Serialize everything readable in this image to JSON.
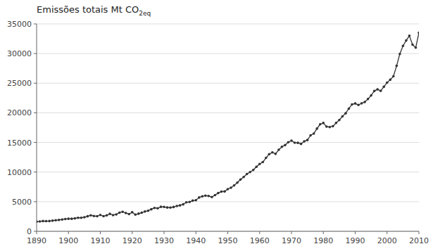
{
  "chart_data": {
    "type": "line",
    "title": "Emissões totais Mt CO",
    "subtitle": "2eq",
    "x": [
      1890,
      1891,
      1892,
      1893,
      1894,
      1895,
      1896,
      1897,
      1898,
      1899,
      1900,
      1901,
      1902,
      1903,
      1904,
      1905,
      1906,
      1907,
      1908,
      1909,
      1910,
      1911,
      1912,
      1913,
      1914,
      1915,
      1916,
      1917,
      1918,
      1919,
      1920,
      1921,
      1922,
      1923,
      1924,
      1925,
      1926,
      1927,
      1928,
      1929,
      1930,
      1931,
      1932,
      1933,
      1934,
      1935,
      1936,
      1937,
      1938,
      1939,
      1940,
      1941,
      1942,
      1943,
      1944,
      1945,
      1946,
      1947,
      1948,
      1949,
      1950,
      1951,
      1952,
      1953,
      1954,
      1955,
      1956,
      1957,
      1958,
      1959,
      1960,
      1961,
      1962,
      1963,
      1964,
      1965,
      1966,
      1967,
      1968,
      1969,
      1970,
      1971,
      1972,
      1973,
      1974,
      1975,
      1976,
      1977,
      1978,
      1979,
      1980,
      1981,
      1982,
      1983,
      1984,
      1985,
      1986,
      1987,
      1988,
      1989,
      1990,
      1991,
      1992,
      1993,
      1994,
      1995,
      1996,
      1997,
      1998,
      1999,
      2000,
      2001,
      2002,
      2003,
      2004,
      2005,
      2006,
      2007,
      2008,
      2009,
      2010
    ],
    "values": [
      1626,
      1668,
      1732,
      1714,
      1730,
      1797,
      1868,
      1919,
      1996,
      2068,
      2117,
      2116,
      2181,
      2283,
      2284,
      2380,
      2531,
      2708,
      2580,
      2543,
      2761,
      2547,
      2699,
      2946,
      2731,
      2853,
      3152,
      3293,
      3091,
      2913,
      3224,
      2813,
      2977,
      3143,
      3340,
      3475,
      3722,
      3953,
      3885,
      4136,
      4116,
      4017,
      4003,
      4103,
      4271,
      4374,
      4548,
      4901,
      4947,
      5178,
      5246,
      5709,
      5909,
      6023,
      5958,
      5785,
      6103,
      6456,
      6701,
      6719,
      7117,
      7364,
      7748,
      8209,
      8741,
      9173,
      9666,
      9994,
      10348,
      10877,
      11363,
      11682,
      12393,
      13014,
      13314,
      13067,
      13758,
      14270,
      14551,
      15035,
      15300,
      14955,
      14929,
      14753,
      15177,
      15408,
      16193,
      16499,
      17334,
      18065,
      18281,
      17668,
      17597,
      17738,
      18290,
      18771,
      19400,
      19914,
      20706,
      21408,
      21576,
      21322,
      21597,
      21820,
      22320,
      22929,
      23679,
      23952,
      23707,
      24391,
      25085,
      25581,
      26163,
      27930,
      29930,
      31290,
      32200,
      33000,
      31500,
      31000,
      33500
    ],
    "color": "#333333",
    "marker": "circle",
    "xlim": [
      1890,
      2010
    ],
    "ylim": [
      0,
      35000
    ],
    "xticks": [
      1890,
      1900,
      1910,
      1920,
      1930,
      1940,
      1950,
      1960,
      1970,
      1980,
      1990,
      2000,
      2010
    ],
    "yticks": [
      0,
      5000,
      10000,
      15000,
      20000,
      25000,
      30000,
      35000
    ],
    "grid": true
  }
}
